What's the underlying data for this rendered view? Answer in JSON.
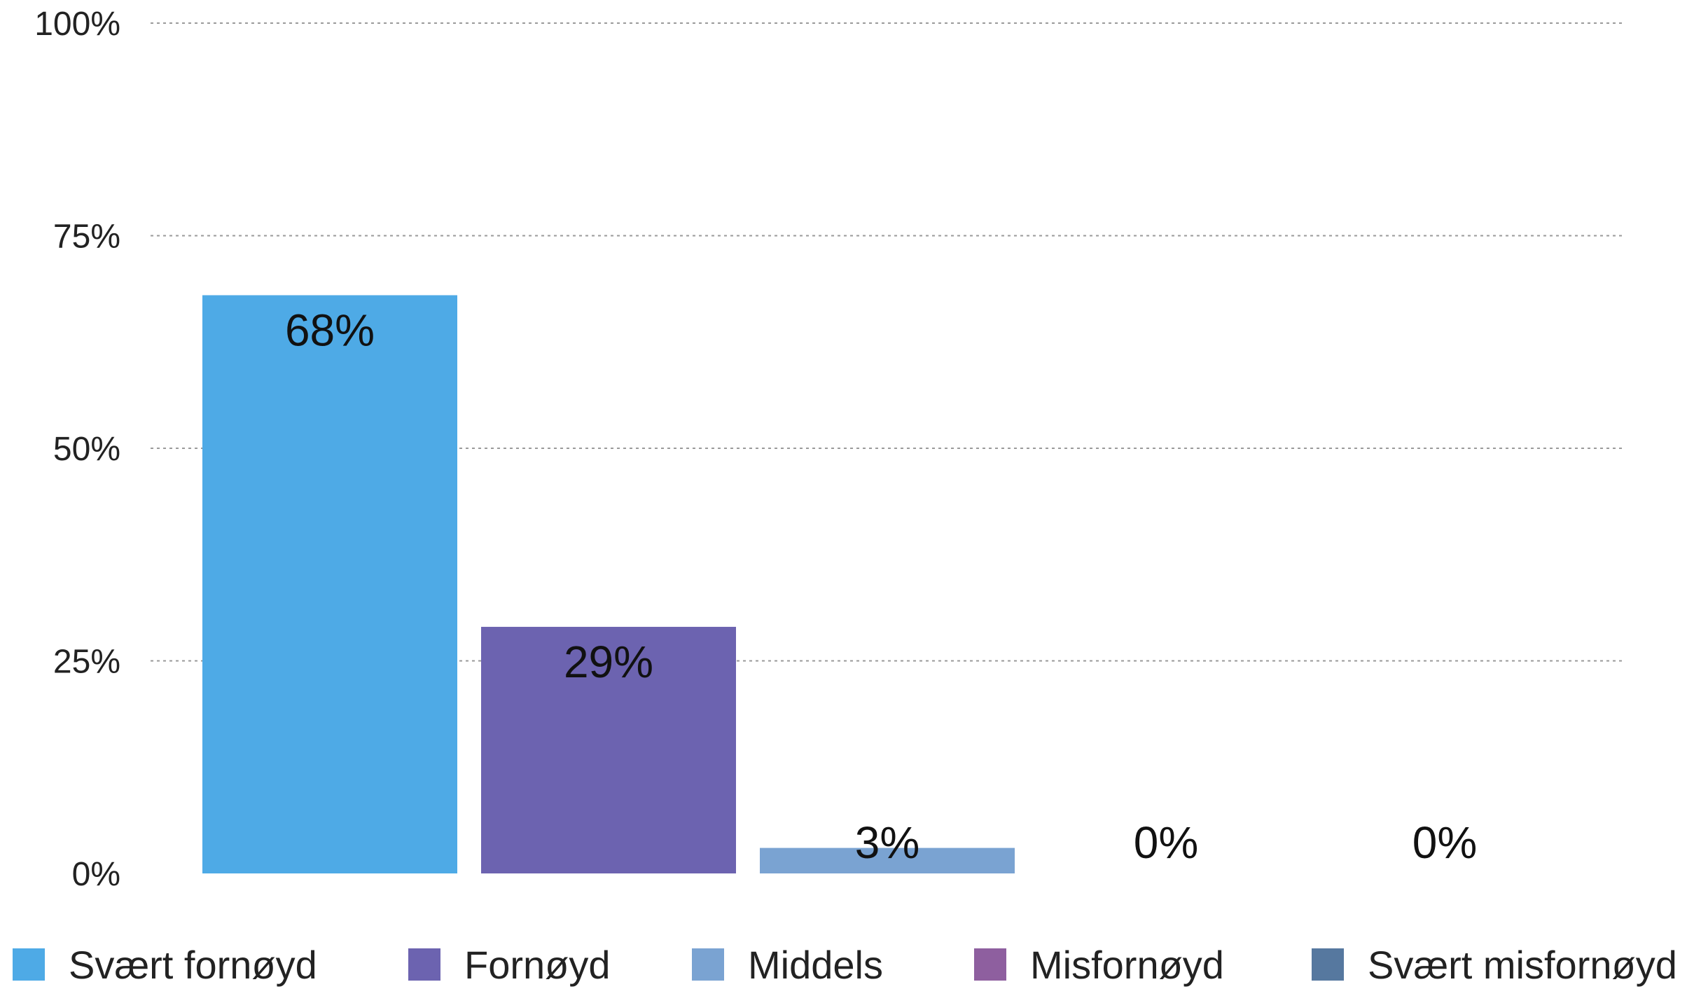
{
  "chart_data": {
    "type": "bar",
    "categories": [
      "Svært fornøyd",
      "Fornøyd",
      "Middels",
      "Misfornøyd",
      "Svært misfornøyd"
    ],
    "values": [
      68,
      29,
      3,
      0,
      0
    ],
    "data_labels": [
      "68%",
      "29%",
      "3%",
      "0%",
      "0%"
    ],
    "colors": [
      "#4eaae6",
      "#6c63b0",
      "#7aa3d2",
      "#8e5f9f",
      "#56789f"
    ],
    "ylim": [
      0,
      100
    ],
    "y_ticks": [
      0,
      25,
      50,
      75,
      100
    ],
    "y_tick_labels": [
      "0%",
      "25%",
      "50%",
      "75%",
      "100%"
    ],
    "grid": true,
    "grid_style": "dotted",
    "legend_position": "bottom",
    "title": "",
    "xlabel": "",
    "ylabel": ""
  }
}
